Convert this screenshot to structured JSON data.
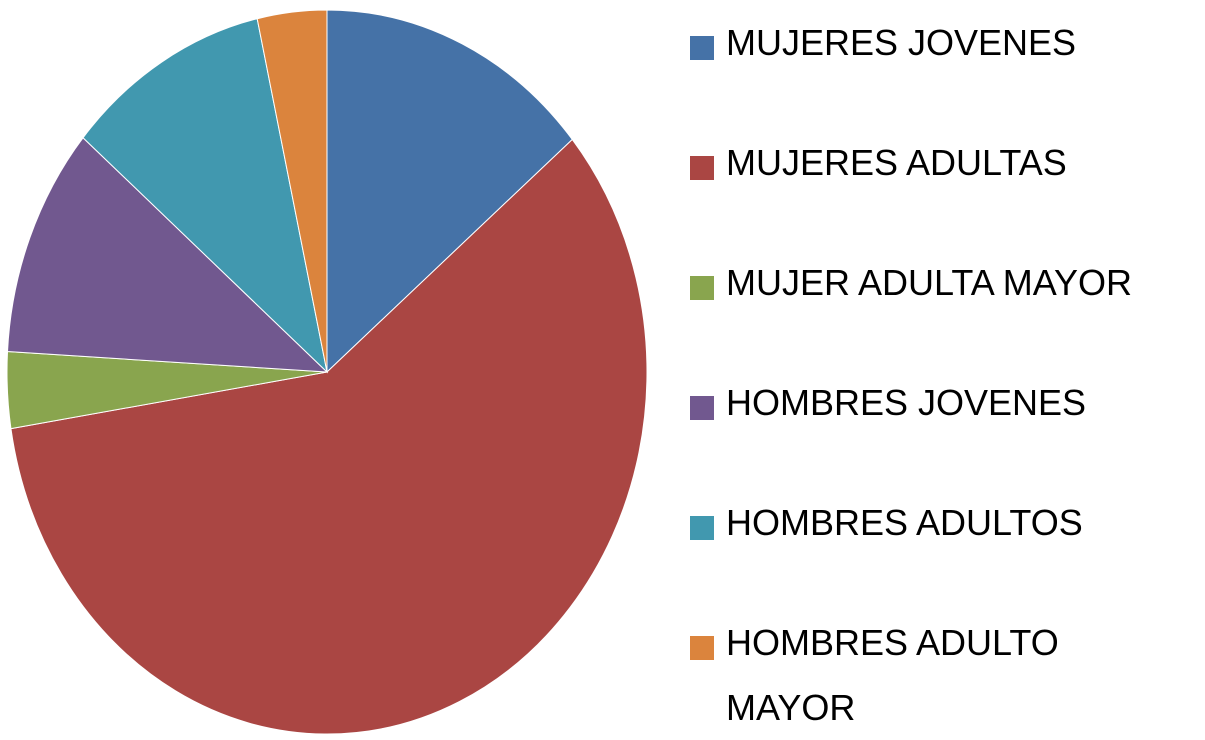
{
  "chart_data": {
    "type": "pie",
    "categories": [
      "MUJERES JOVENES",
      "MUJERES ADULTAS",
      "MUJER ADULTA MAYOR",
      "HOMBRES JOVENES",
      "HOMBRES ADULTOS",
      "HOMBRES ADULTO MAYOR"
    ],
    "values": [
      13.9,
      58.6,
      3.4,
      10.3,
      10.3,
      3.5
    ],
    "colors": [
      "#4572a7",
      "#aa4643",
      "#89a54e",
      "#71588f",
      "#4198af",
      "#db843d"
    ],
    "legend": "right"
  }
}
